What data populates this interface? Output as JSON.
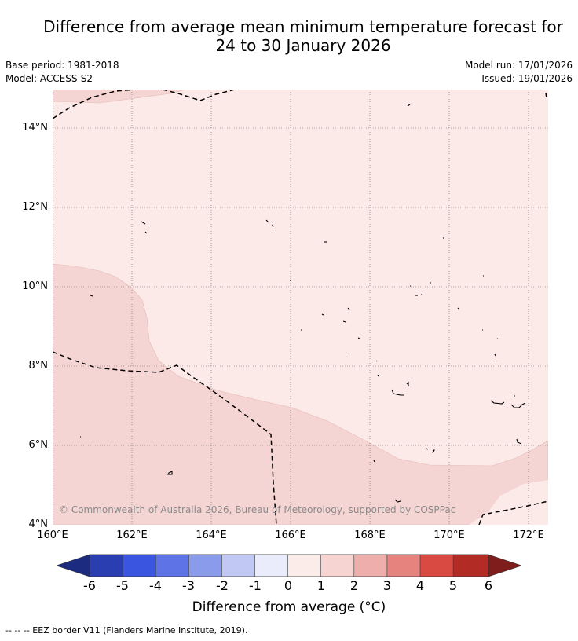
{
  "title_line1": "Difference from average mean minimum temperature forecast for",
  "title_line2": "24 to 30 January 2026",
  "base_period": "Base period: 1981-2018",
  "model": "Model: ACCESS-S2",
  "model_run": "Model run: 17/01/2026",
  "issued": "Issued: 19/01/2026",
  "copyright": "© Commonwealth of Australia 2026, Bureau of Meteorology, supported by COSPPac",
  "lat_labels": [
    "14°N",
    "12°N",
    "10°N",
    "8°N",
    "6°N",
    "4°N"
  ],
  "lon_labels": [
    "160°E",
    "162°E",
    "164°E",
    "166°E",
    "168°E",
    "170°E",
    "172°E"
  ],
  "colorbar": {
    "label": "Difference from average (°C)",
    "ticks": [
      "-6",
      "-5",
      "-4",
      "-3",
      "-2",
      "-1",
      "0",
      "1",
      "2",
      "3",
      "4",
      "5",
      "6"
    ],
    "colors": [
      "#1c2b7f",
      "#2a3eb1",
      "#3a56e0",
      "#5d73e6",
      "#8b9bec",
      "#c2c8f4",
      "#eaecfb",
      "#fbecea",
      "#f5d4d2",
      "#eeaeab",
      "#e6837f",
      "#d94a43",
      "#b22b24",
      "#7e1d1b"
    ]
  },
  "map_colors": {
    "anomaly_0_to_1": "#fbeae8",
    "anomaly_1_to_2": "#f5d5d3"
  },
  "footer": "--  --  -- EEZ border V11 (Flanders Marine Institute, 2019)."
}
